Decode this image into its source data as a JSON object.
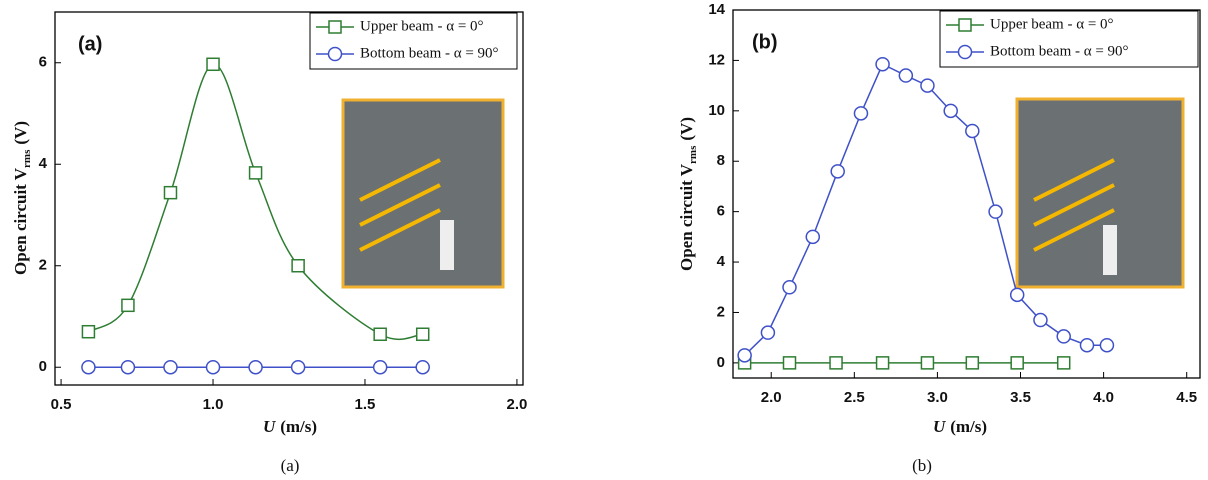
{
  "chart_data": [
    {
      "type": "line",
      "panel_label": "(a)",
      "caption": "(a)",
      "xlabel": {
        "symbol": "U",
        "unit": "(m/s)"
      },
      "ylabel": {
        "text": "Open circuit V",
        "subscript": "rms",
        "unit": "(V)"
      },
      "xlim": [
        0.48,
        2.02
      ],
      "ylim": [
        -0.35,
        7
      ],
      "xticks": [
        0.5,
        {
          "value": 1,
          "label": "1.0"
        },
        1.5,
        {
          "value": 2,
          "label": "2.0"
        }
      ],
      "yticks": [
        0,
        2,
        4,
        6
      ],
      "smooth": true,
      "legend": "upper right",
      "series": [
        {
          "name": "Upper beam - α = 0°",
          "color": "#2e7d32",
          "marker": "square",
          "x": [
            0.59,
            0.72,
            0.86,
            1.0,
            1.14,
            1.28,
            1.55,
            1.69
          ],
          "values": [
            0.7,
            1.22,
            3.44,
            5.97,
            3.83,
            2.0,
            0.65,
            0.65
          ]
        },
        {
          "name": "Bottom beam - α = 90°",
          "color": "#3f51c8",
          "marker": "circle",
          "x": [
            0.59,
            0.72,
            0.86,
            1.0,
            1.14,
            1.28,
            1.55,
            1.69
          ],
          "values": [
            0,
            0,
            0,
            0,
            0,
            0,
            0,
            0
          ]
        }
      ]
    },
    {
      "type": "line",
      "panel_label": "(b)",
      "caption": "(b)",
      "xlabel": {
        "symbol": "U",
        "unit": "(m/s)"
      },
      "ylabel": {
        "text": "Open circuit V",
        "subscript": "rms",
        "unit": "(V)"
      },
      "xlim": [
        1.77,
        4.58
      ],
      "ylim": [
        -0.6,
        14
      ],
      "xticks": [
        {
          "value": 2,
          "label": "2.0"
        },
        2.5,
        {
          "value": 3,
          "label": "3.0"
        },
        3.5,
        {
          "value": 4,
          "label": "4.0"
        },
        4.5
      ],
      "yticks": [
        0,
        2,
        4,
        6,
        8,
        10,
        12,
        14
      ],
      "smooth": false,
      "legend": "upper right",
      "series": [
        {
          "name": "Upper beam - α = 0°",
          "color": "#2e7d32",
          "marker": "square",
          "x": [
            1.84,
            2.11,
            2.39,
            2.67,
            2.94,
            3.21,
            3.48,
            3.76
          ],
          "values": [
            0,
            0,
            0,
            0,
            0,
            0,
            0,
            0
          ]
        },
        {
          "name": "Bottom beam - α = 90°",
          "color": "#3f51c8",
          "marker": "circle",
          "x": [
            1.84,
            1.98,
            2.11,
            2.25,
            2.4,
            2.54,
            2.67,
            2.81,
            2.94,
            3.08,
            3.21,
            3.35,
            3.48,
            3.62,
            3.76,
            3.9,
            4.02
          ],
          "values": [
            0.3,
            1.2,
            3.0,
            5.0,
            7.6,
            9.9,
            11.85,
            11.4,
            11.0,
            10.0,
            9.2,
            6.0,
            2.7,
            1.7,
            1.05,
            0.7,
            0.7
          ]
        }
      ]
    }
  ]
}
